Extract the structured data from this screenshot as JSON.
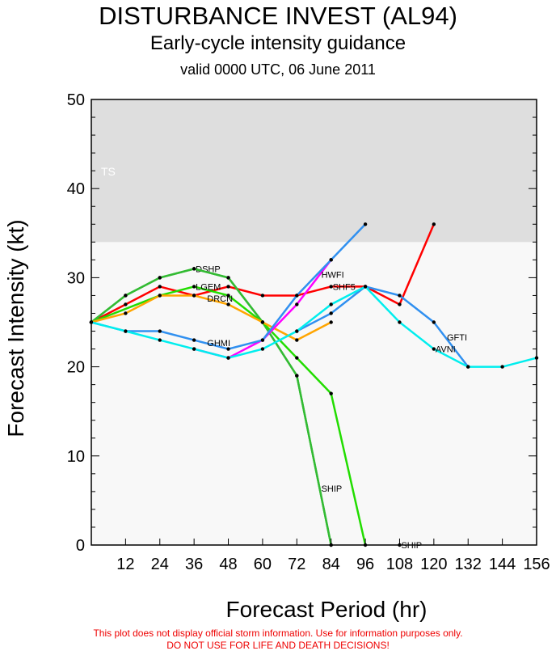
{
  "chart_data": {
    "type": "line",
    "title": "DISTURBANCE INVEST (AL94)",
    "subtitle": "Early-cycle intensity guidance",
    "valid": "valid 0000 UTC, 06 June 2011",
    "xlabel": "Forecast Period (hr)",
    "ylabel": "Forecast Intensity (kt)",
    "xlim": [
      0,
      156
    ],
    "ylim": [
      0,
      50
    ],
    "xticks": [
      12,
      24,
      36,
      48,
      60,
      72,
      84,
      96,
      108,
      120,
      132,
      144,
      156
    ],
    "yticks": [
      0,
      10,
      20,
      30,
      40,
      50
    ],
    "band": {
      "label": "TS",
      "from": 34,
      "to": 50,
      "color": "#dedede"
    },
    "series": [
      {
        "name": "SHF5",
        "color": "#ff0000",
        "x": [
          0,
          12,
          24,
          36,
          48,
          60,
          72,
          84,
          96,
          108,
          120
        ],
        "y": [
          25,
          27,
          29,
          28,
          29,
          28,
          28,
          29,
          29,
          27,
          36
        ],
        "label_at": 84
      },
      {
        "name": "DSHP",
        "color": "#33bb33",
        "x": [
          0,
          12,
          24,
          36,
          48,
          60,
          72,
          84
        ],
        "y": [
          25,
          28,
          30,
          31,
          30,
          25,
          19,
          0
        ],
        "label_at": 36
      },
      {
        "name": "SHIP",
        "color": "#33bb33",
        "x": [
          0,
          12,
          24,
          36,
          48,
          60,
          72,
          84
        ],
        "y": [
          25,
          28,
          30,
          31,
          30,
          25,
          19,
          0
        ],
        "label_at": 80
      },
      {
        "name": "LGEM",
        "color": "#22dd00",
        "x": [
          0,
          24,
          36,
          48,
          60,
          72,
          84,
          96
        ],
        "y": [
          25,
          28,
          29,
          28,
          25,
          21,
          17,
          0
        ],
        "label_at": 36
      },
      {
        "name": "DRCN",
        "color": "#ffa500",
        "x": [
          0,
          12,
          24,
          36,
          48,
          60,
          72,
          84
        ],
        "y": [
          25,
          26,
          28,
          28,
          27,
          25,
          23,
          25
        ],
        "label_at": 40
      },
      {
        "name": "HWFI",
        "color": "#ff00ff",
        "x": [
          36,
          48,
          60,
          72,
          84
        ],
        "y": [
          22,
          21,
          23,
          27,
          32
        ],
        "label_at": 80
      },
      {
        "name": "GHMI",
        "color": "#3090f0",
        "x": [
          0,
          12,
          24,
          36,
          48,
          60,
          72,
          84,
          96
        ],
        "y": [
          25,
          24,
          24,
          23,
          22,
          23,
          28,
          32,
          36
        ],
        "label_at": 40
      },
      {
        "name": "GFTI",
        "color": "#3090f0",
        "x": [
          72,
          84,
          96,
          108,
          120,
          132
        ],
        "y": [
          24,
          26,
          29,
          28,
          25,
          20
        ],
        "label_at": 124
      },
      {
        "name": "AVNI",
        "color": "#00eeee",
        "x": [
          0,
          12,
          24,
          36,
          48,
          60,
          72,
          84,
          96,
          108,
          120,
          132,
          144,
          156
        ],
        "y": [
          25,
          24,
          23,
          22,
          21,
          22,
          24,
          27,
          29,
          25,
          22,
          20,
          20,
          21
        ],
        "label_at": 120
      },
      {
        "name": "SHIP",
        "color": "#000000",
        "x": [
          108
        ],
        "y": [
          0
        ],
        "label_at": 108
      }
    ]
  },
  "footer": [
    "This plot does not display official storm information. Use for information purposes only.",
    "DO NOT USE FOR LIFE AND DEATH DECISIONS!"
  ]
}
